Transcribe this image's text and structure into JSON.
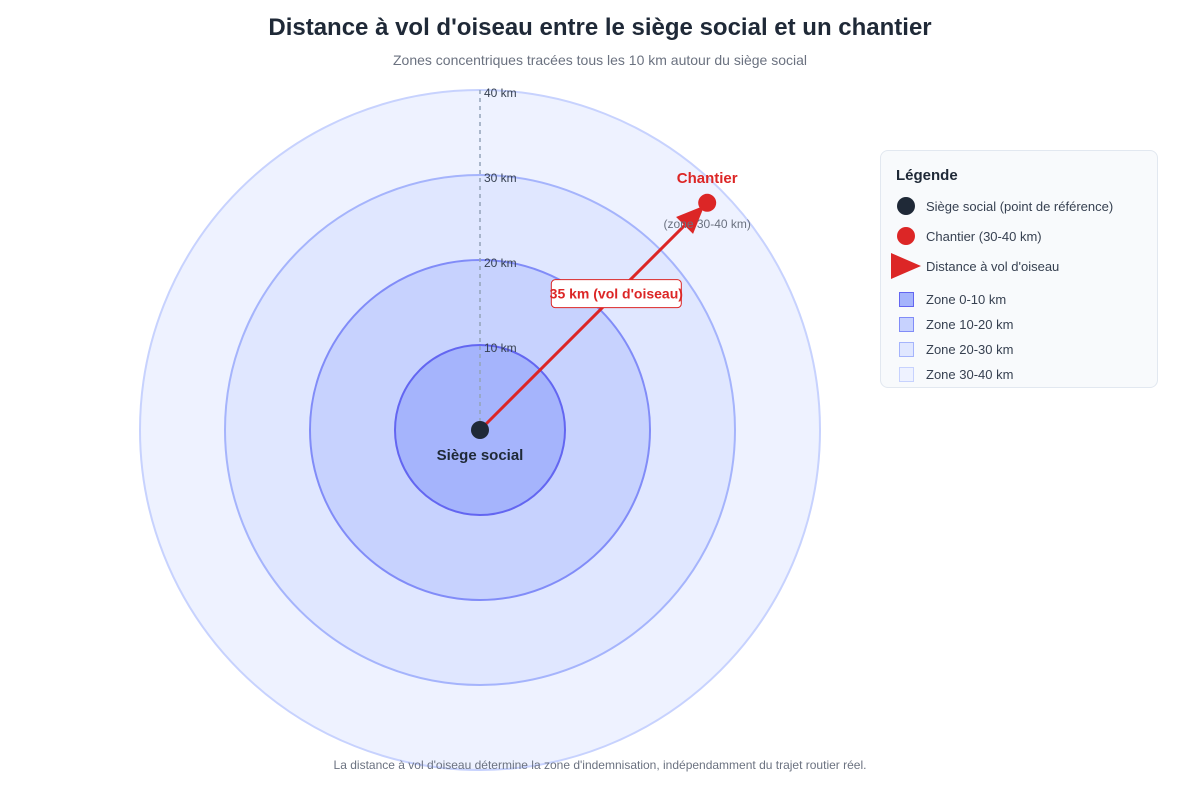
{
  "header": {
    "title": "Distance à vol d'oiseau entre le siège social et un chantier",
    "subtitle": "Zones concentriques tracées tous les 10 km autour du siège social"
  },
  "diagram": {
    "rings": [
      {
        "radius_km": 40,
        "label": "40 km",
        "fill": "#eef2ff",
        "stroke": "#c7d2fe"
      },
      {
        "radius_km": 30,
        "label": "30 km",
        "fill": "#e0e7ff",
        "stroke": "#a5b4fc"
      },
      {
        "radius_km": 20,
        "label": "20 km",
        "fill": "#c7d2fe",
        "stroke": "#818cf8"
      },
      {
        "radius_km": 10,
        "label": "10 km",
        "fill": "#a5b4fc",
        "stroke": "#6366f1"
      }
    ],
    "headquarters": {
      "label": "Siège social",
      "color": "#1f2937"
    },
    "site": {
      "label": "Chantier",
      "sublabel": "(zone 30-40 km)",
      "color": "#dc2626",
      "distance_km": 35,
      "bearing_deg": 45
    },
    "distance_label": "35 km (vol d'oiseau)"
  },
  "legend": {
    "title": "Légende",
    "items": [
      {
        "label": "Siège social (point de référence)",
        "kind": "dot",
        "color": "#1f2937"
      },
      {
        "label": "Chantier (30-40 km)",
        "kind": "dot",
        "color": "#dc2626"
      },
      {
        "label": "Distance à vol d'oiseau",
        "kind": "arrow",
        "color": "#dc2626"
      },
      {
        "label": "Zone 0-10 km",
        "kind": "square",
        "color": "#a5b4fc",
        "border": "#6366f1"
      },
      {
        "label": "Zone 10-20 km",
        "kind": "square",
        "color": "#c7d2fe",
        "border": "#818cf8"
      },
      {
        "label": "Zone 20-30 km",
        "kind": "square",
        "color": "#e0e7ff",
        "border": "#a5b4fc"
      },
      {
        "label": "Zone 30-40 km",
        "kind": "square",
        "color": "#eef2ff",
        "border": "#c7d2fe"
      }
    ]
  },
  "footer": {
    "note": "La distance à vol d'oiseau détermine la zone d'indemnisation, indépendamment du trajet routier réel."
  }
}
